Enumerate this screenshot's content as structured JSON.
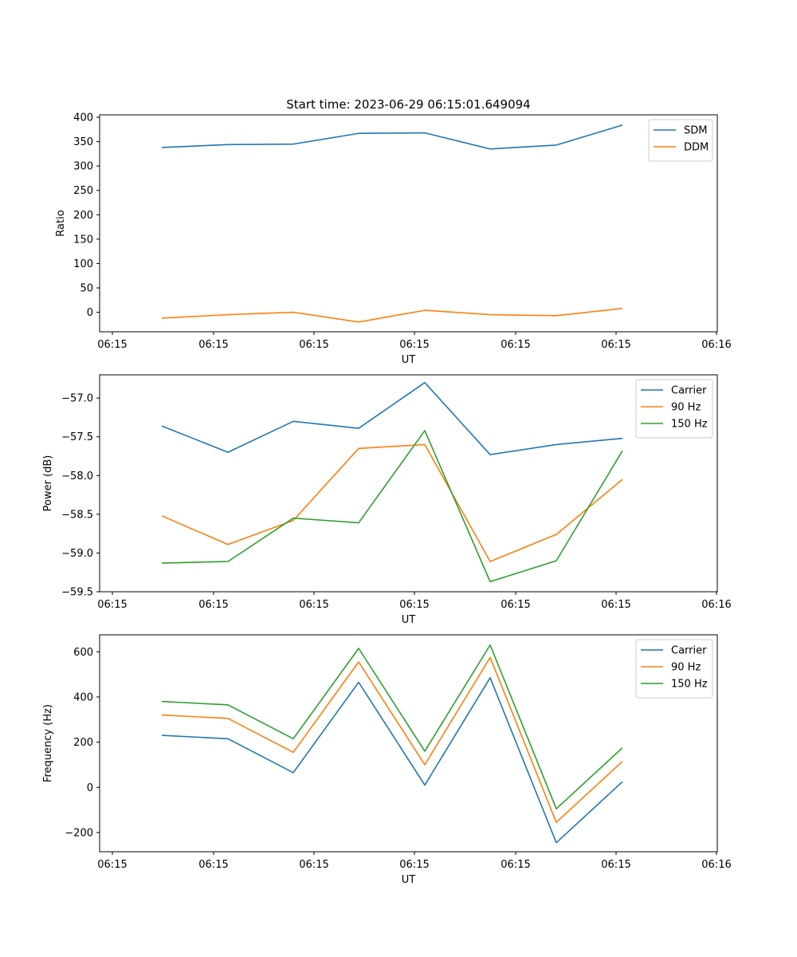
{
  "title": "Start time: 2023-06-29 06:15:01.649094",
  "colors": {
    "blue": "#1f77b4",
    "orange": "#ff7f0e",
    "green": "#2ca02c"
  },
  "chart_data": [
    {
      "type": "line",
      "xlabel": "UT",
      "ylabel": "Ratio",
      "x_tick_labels": [
        "06:15",
        "06:15",
        "06:15",
        "06:15",
        "06:15",
        "06:15",
        "06:16"
      ],
      "y_tick_values": [
        0,
        50,
        100,
        150,
        200,
        250,
        300,
        350,
        400
      ],
      "y_tick_labels": [
        "0",
        "50",
        "100",
        "150",
        "200",
        "250",
        "300",
        "350",
        "400"
      ],
      "ylim": [
        -40,
        405
      ],
      "legend_position": "top-right",
      "grid": false,
      "series": [
        {
          "name": "SDM",
          "color": "#1f77b4",
          "values": [
            338,
            344,
            345,
            367,
            368,
            335,
            343,
            384
          ]
        },
        {
          "name": "DDM",
          "color": "#ff7f0e",
          "values": [
            -12,
            -5,
            0,
            -20,
            4,
            -5,
            -7,
            8
          ]
        }
      ]
    },
    {
      "type": "line",
      "xlabel": "UT",
      "ylabel": "Power (dB)",
      "x_tick_labels": [
        "06:15",
        "06:15",
        "06:15",
        "06:15",
        "06:15",
        "06:15",
        "06:16"
      ],
      "y_tick_values": [
        -59.5,
        -59.0,
        -58.5,
        -58.0,
        -57.5,
        -57.0
      ],
      "y_tick_labels": [
        "−59.5",
        "−59.0",
        "−58.5",
        "−58.0",
        "−57.5",
        "−57.0"
      ],
      "ylim": [
        -59.5,
        -56.7
      ],
      "legend_position": "top-right",
      "grid": false,
      "series": [
        {
          "name": "Carrier",
          "color": "#1f77b4",
          "values": [
            -57.36,
            -57.7,
            -57.3,
            -57.39,
            -56.8,
            -57.73,
            -57.6,
            -57.52
          ]
        },
        {
          "name": "90 Hz",
          "color": "#ff7f0e",
          "values": [
            -58.52,
            -58.89,
            -58.58,
            -57.65,
            -57.6,
            -59.11,
            -58.76,
            -58.05
          ]
        },
        {
          "name": "150 Hz",
          "color": "#2ca02c",
          "values": [
            -59.13,
            -59.11,
            -58.55,
            -58.61,
            -57.42,
            -59.37,
            -59.1,
            -57.68
          ]
        }
      ]
    },
    {
      "type": "line",
      "xlabel": "UT",
      "ylabel": "Frequency (Hz)",
      "x_tick_labels": [
        "06:15",
        "06:15",
        "06:15",
        "06:15",
        "06:15",
        "06:15",
        "06:16"
      ],
      "y_tick_values": [
        -200,
        0,
        200,
        400,
        600
      ],
      "y_tick_labels": [
        "−200",
        "0",
        "200",
        "400",
        "600"
      ],
      "ylim": [
        -285,
        675
      ],
      "legend_position": "top-right",
      "grid": false,
      "series": [
        {
          "name": "Carrier",
          "color": "#1f77b4",
          "values": [
            230,
            215,
            65,
            465,
            10,
            485,
            -245,
            25
          ]
        },
        {
          "name": "90 Hz",
          "color": "#ff7f0e",
          "values": [
            320,
            305,
            155,
            555,
            100,
            575,
            -155,
            115
          ]
        },
        {
          "name": "150 Hz",
          "color": "#2ca02c",
          "values": [
            380,
            365,
            215,
            615,
            160,
            630,
            -95,
            175
          ]
        }
      ]
    }
  ]
}
